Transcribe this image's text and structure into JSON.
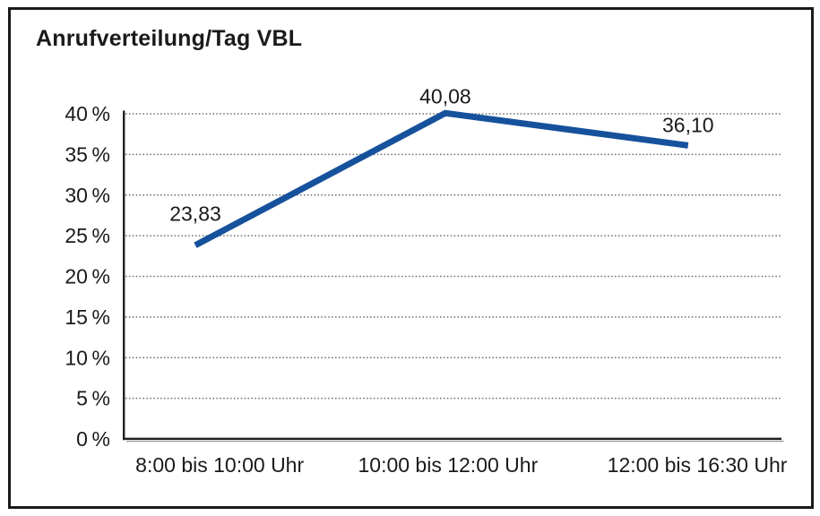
{
  "page": {
    "title": "Anrufverteilung/Tag VBL"
  },
  "chart_data": {
    "type": "line",
    "title": "Anrufverteilung/Tag VBL",
    "categories": [
      "8:00 bis 10:00 Uhr",
      "10:00 bis 12:00 Uhr",
      "12:00 bis 16:30 Uhr"
    ],
    "values": [
      23.83,
      40.08,
      36.1
    ],
    "point_labels": [
      "23,83",
      "40,08",
      "36,10"
    ],
    "xlabel": "",
    "ylabel": "",
    "ylim": [
      0,
      40
    ],
    "ytick_step": 5,
    "ytick_labels": [
      "0 %",
      "5 %",
      "10 %",
      "15 %",
      "20 %",
      "25 %",
      "30 %",
      "35 %",
      "40 %"
    ],
    "grid": "horizontal-dotted",
    "legend": "none",
    "colors": {
      "line": "#16519c",
      "text": "#1a1a1a",
      "grid_dots": "#6b6b6b",
      "axis": "#1f1f1f",
      "axis_shadow": "#9c9c9c",
      "background": "#ffffff",
      "border": "#1a1a1a"
    }
  }
}
